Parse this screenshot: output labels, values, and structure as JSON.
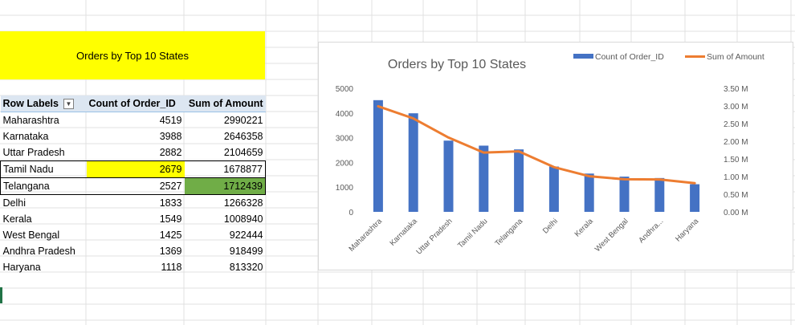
{
  "sheet": {
    "title_cell": "Orders by Top 10 States",
    "colors": {
      "highlight_yellow": "#ffff00",
      "highlight_green": "#70ad47",
      "header_bg": "#dce6f1"
    }
  },
  "pivot": {
    "headers": [
      "Row Labels",
      "Count of Order_ID",
      "Sum of Amount"
    ],
    "filter_icon": "filter-dropdown-icon",
    "rows": [
      {
        "state": "Maharashtra",
        "count": "4519",
        "sum": "2990221"
      },
      {
        "state": "Karnataka",
        "count": "3988",
        "sum": "2646358"
      },
      {
        "state": "Uttar Pradesh",
        "count": "2882",
        "sum": "2104659"
      },
      {
        "state": "Tamil Nadu",
        "count": "2679",
        "sum": "1678877"
      },
      {
        "state": "Telangana",
        "count": "2527",
        "sum": "1712439"
      },
      {
        "state": "Delhi",
        "count": "1833",
        "sum": "1266328"
      },
      {
        "state": "Kerala",
        "count": "1549",
        "sum": "1008940"
      },
      {
        "state": "West Bengal",
        "count": "1425",
        "sum": "922444"
      },
      {
        "state": "Andhra Pradesh",
        "count": "1369",
        "sum": "918499"
      },
      {
        "state": "Haryana",
        "count": "1118",
        "sum": "813320"
      }
    ]
  },
  "chart_data": {
    "type": "bar",
    "title": "Orders by Top 10 States",
    "categories": [
      "Maharashtra",
      "Karnataka",
      "Uttar Pradesh",
      "Tamil Nadu",
      "Telangana",
      "Delhi",
      "Kerala",
      "West Bengal",
      "Andhra...",
      "Haryana"
    ],
    "series": [
      {
        "name": "Count of Order_ID",
        "type": "bar",
        "axis": "left",
        "color": "#4472c4",
        "values": [
          4519,
          3988,
          2882,
          2679,
          2527,
          1833,
          1549,
          1425,
          1369,
          1118
        ]
      },
      {
        "name": "Sum of Amount",
        "type": "line",
        "axis": "right",
        "color": "#ed7d31",
        "values": [
          2990221,
          2646358,
          2104659,
          1678877,
          1712439,
          1266328,
          1008940,
          922444,
          918499,
          813320
        ]
      }
    ],
    "ylim_left": [
      0,
      5000
    ],
    "yticks_left": [
      "0",
      "1000",
      "2000",
      "3000",
      "4000",
      "5000"
    ],
    "ylim_right": [
      0,
      3500000
    ],
    "yticks_right": [
      "0.00 M",
      "0.50 M",
      "1.00 M",
      "1.50 M",
      "2.00 M",
      "2.50 M",
      "3.00 M",
      "3.50 M"
    ],
    "legend_position": "top-right",
    "grid": false
  }
}
